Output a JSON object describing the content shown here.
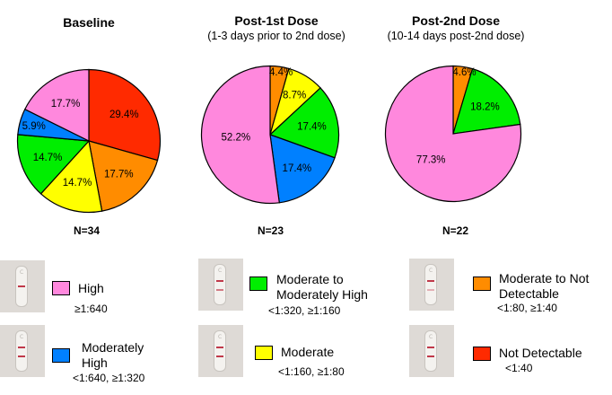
{
  "chart_data": [
    {
      "type": "pie",
      "title": "Baseline",
      "subtitle": "",
      "n_label": "N=34",
      "slices": [
        {
          "category": "Not Detectable",
          "value": 29.4,
          "label": "29.4%",
          "color": "#ff2a00"
        },
        {
          "category": "Moderate to Not Detectable",
          "value": 17.7,
          "label": "17.7%",
          "color": "#ff8c00"
        },
        {
          "category": "Moderate",
          "value": 14.7,
          "label": "14.7%",
          "color": "#ffff00"
        },
        {
          "category": "Moderate to Moderately High",
          "value": 14.7,
          "label": "14.7%",
          "color": "#00ee00"
        },
        {
          "category": "Moderately High",
          "value": 5.9,
          "label": "5.9%",
          "color": "#0080ff"
        },
        {
          "category": "High",
          "value": 17.7,
          "label": "17.7%",
          "color": "#ff88dd"
        }
      ]
    },
    {
      "type": "pie",
      "title": "Post-1st Dose",
      "subtitle": "(1-3 days prior to 2nd dose)",
      "n_label": "N=23",
      "slices": [
        {
          "category": "Moderate to Not Detectable",
          "value": 4.4,
          "label": "4.4%",
          "color": "#ff8c00"
        },
        {
          "category": "Moderate",
          "value": 8.7,
          "label": "8.7%",
          "color": "#ffff00"
        },
        {
          "category": "Moderate to Moderately High",
          "value": 17.4,
          "label": "17.4%",
          "color": "#00ee00"
        },
        {
          "category": "Moderately High",
          "value": 17.4,
          "label": "17.4%",
          "color": "#0080ff"
        },
        {
          "category": "High",
          "value": 52.2,
          "label": "52.2%",
          "color": "#ff88dd"
        }
      ]
    },
    {
      "type": "pie",
      "title": "Post-2nd Dose",
      "subtitle": "(10-14 days post-2nd dose)",
      "n_label": "N=22",
      "slices": [
        {
          "category": "Moderate to Not Detectable",
          "value": 4.6,
          "label": "4.6%",
          "color": "#ff8c00"
        },
        {
          "category": "Moderate to Moderately High",
          "value": 18.2,
          "label": "18.2%",
          "color": "#00ee00"
        },
        {
          "category": "High",
          "value": 77.3,
          "label": "77.3%",
          "color": "#ff88dd"
        }
      ]
    }
  ],
  "legend": [
    {
      "label_lines": [
        "High"
      ],
      "range": "≥1:640",
      "color": "#ff88dd",
      "bands": 1
    },
    {
      "label_lines": [
        "Moderately",
        "High"
      ],
      "range": "<1:640, ≥1:320",
      "color": "#0080ff",
      "bands": 2
    },
    {
      "label_lines": [
        "Moderate to",
        "Moderately High"
      ],
      "range": "<1:320, ≥1:160",
      "color": "#00ee00",
      "bands": 2
    },
    {
      "label_lines": [
        "Moderate"
      ],
      "range": "<1:160, ≥1:80",
      "color": "#ffff00",
      "bands": 2
    },
    {
      "label_lines": [
        "Moderate to Not",
        "Detectable"
      ],
      "range": "<1:80, ≥1:40",
      "color": "#ff8c00",
      "bands": 2
    },
    {
      "label_lines": [
        "Not Detectable"
      ],
      "range": "<1:40",
      "color": "#ff2a00",
      "bands": 2
    }
  ]
}
